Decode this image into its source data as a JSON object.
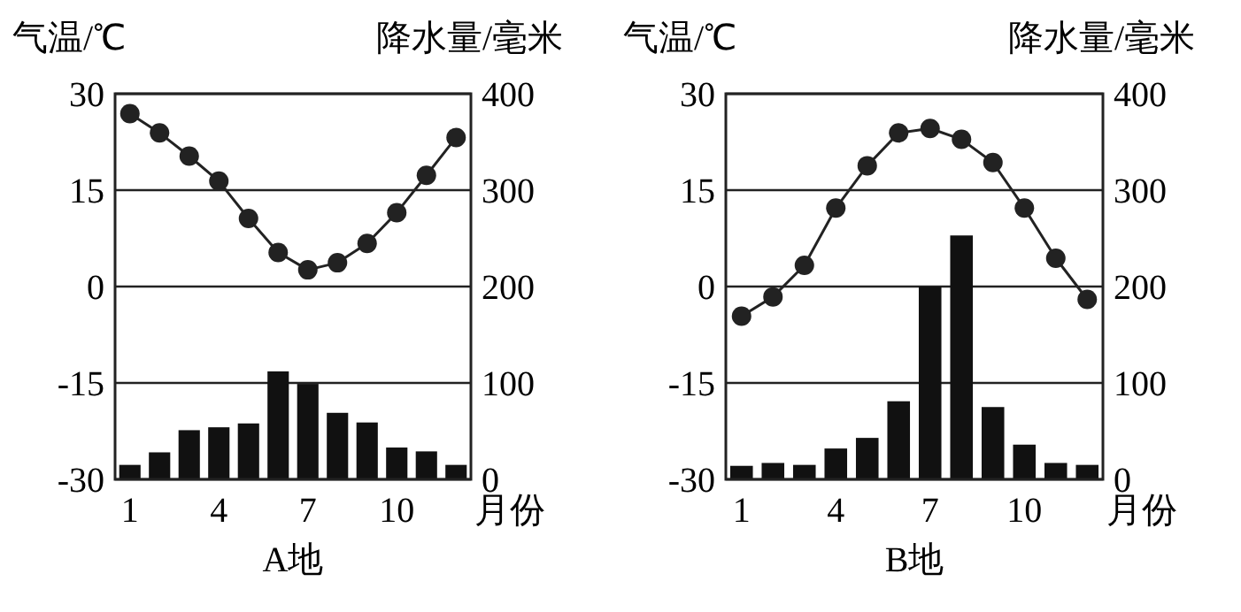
{
  "chart_data": [
    {
      "type": "bar",
      "title": "A地",
      "xlabel": "月份",
      "ylabel": "气温/℃",
      "y2label": "降水量/毫米",
      "categories": [
        "1",
        null,
        null,
        "4",
        null,
        null,
        "7",
        null,
        null,
        "10",
        null,
        null
      ],
      "ylim": [
        -30,
        30
      ],
      "yticks": [
        30,
        15,
        0,
        -15,
        -30
      ],
      "y2lim": [
        0,
        400
      ],
      "y2ticks": [
        400,
        300,
        200,
        100,
        0
      ],
      "grid": "y",
      "marker": "circle",
      "series": [
        {
          "axis": "y2",
          "color": "#111111",
          "values": [
            15,
            28,
            51,
            54,
            58,
            112,
            99,
            69,
            59,
            33,
            29,
            15
          ]
        },
        {
          "type": "line",
          "axis": "y",
          "color": "#222222",
          "values": [
            26.9,
            23.9,
            20.3,
            16.4,
            10.6,
            5.3,
            2.6,
            3.7,
            6.7,
            11.5,
            17.3,
            23.2
          ]
        }
      ]
    },
    {
      "type": "bar",
      "title": "B地",
      "xlabel": "月份",
      "ylabel": "气温/℃",
      "y2label": "降水量/毫米",
      "categories": [
        "1",
        null,
        null,
        "4",
        null,
        null,
        "7",
        null,
        null,
        "10",
        null,
        null
      ],
      "ylim": [
        -30,
        30
      ],
      "yticks": [
        30,
        15,
        0,
        -15,
        -30
      ],
      "y2lim": [
        0,
        400
      ],
      "y2ticks": [
        400,
        300,
        200,
        100,
        0
      ],
      "grid": "y",
      "marker": "circle",
      "series": [
        {
          "axis": "y2",
          "color": "#111111",
          "values": [
            14,
            17,
            15,
            32,
            43,
            81,
            200,
            253,
            75,
            36,
            17,
            15
          ]
        },
        {
          "type": "line",
          "axis": "y",
          "color": "#222222",
          "values": [
            -4.6,
            -1.6,
            3.3,
            12.2,
            18.8,
            23.9,
            24.6,
            22.9,
            19.3,
            12.2,
            4.4,
            -2.0
          ]
        }
      ]
    }
  ]
}
